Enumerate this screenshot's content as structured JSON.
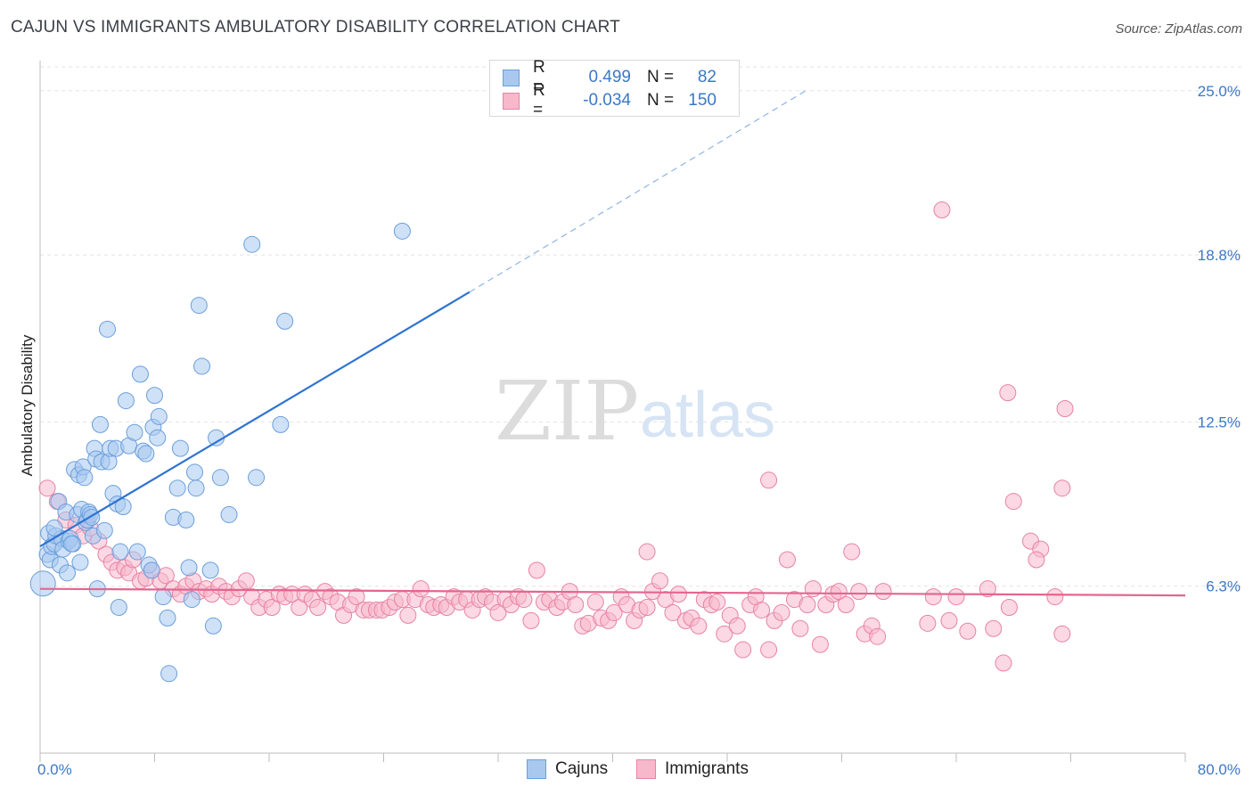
{
  "title": "CAJUN VS IMMIGRANTS AMBULATORY DISABILITY CORRELATION CHART",
  "source": "Source: ZipAtlas.com",
  "watermark": {
    "zip": "ZIP",
    "atlas": "atlas"
  },
  "legend": {
    "rows": [
      {
        "r_label": "R =",
        "r_value": "0.499",
        "n_label": "N =",
        "n_value": "82",
        "color": "#a8c8f0",
        "border": "#6a9fdc"
      },
      {
        "r_label": "R =",
        "r_value": "-0.034",
        "n_label": "N =",
        "n_value": "150",
        "color": "#f7b8cc",
        "border": "#e882a4"
      }
    ]
  },
  "bottom_legend": [
    {
      "label": "Cajuns",
      "color": "#a8c8f0",
      "border": "#6a9fdc"
    },
    {
      "label": "Immigrants",
      "color": "#f7b8cc",
      "border": "#e882a4"
    }
  ],
  "chart_data": {
    "type": "scatter",
    "title": "CAJUN VS IMMIGRANTS AMBULATORY DISABILITY CORRELATION CHART",
    "xlabel": "",
    "ylabel": "Ambulatory Disability",
    "xlim": [
      0,
      80
    ],
    "ylim": [
      0,
      25.9
    ],
    "x_tick_labels": [
      "0.0%",
      "80.0%"
    ],
    "y_ticks": [
      6.3,
      12.5,
      18.8,
      25.0
    ],
    "y_tick_labels": [
      "6.3%",
      "12.5%",
      "18.8%",
      "25.0%"
    ],
    "grid": true,
    "legend_position": "top-center",
    "series": [
      {
        "name": "Cajuns",
        "color": "#6a9fdc",
        "fill": "#a8c8f0",
        "trend": {
          "x": [
            0,
            30
          ],
          "y": [
            7.8,
            17.4
          ],
          "dashed_to": [
            53.5,
            25.0
          ]
        },
        "points": [
          [
            0.2,
            6.4
          ],
          [
            0.5,
            7.5
          ],
          [
            0.6,
            8.3
          ],
          [
            0.7,
            7.3
          ],
          [
            0.8,
            7.8
          ],
          [
            1.0,
            7.9
          ],
          [
            1.1,
            8.2
          ],
          [
            1.3,
            9.5
          ],
          [
            1.4,
            7.1
          ],
          [
            1.5,
            8.1
          ],
          [
            1.6,
            7.7
          ],
          [
            1.8,
            9.1
          ],
          [
            1.9,
            6.8
          ],
          [
            2.0,
            8.0
          ],
          [
            2.1,
            8.1
          ],
          [
            2.3,
            7.9
          ],
          [
            2.4,
            10.7
          ],
          [
            2.6,
            9.0
          ],
          [
            2.7,
            10.5
          ],
          [
            2.8,
            7.2
          ],
          [
            2.9,
            9.2
          ],
          [
            3.0,
            10.8
          ],
          [
            3.1,
            10.4
          ],
          [
            3.2,
            8.7
          ],
          [
            3.3,
            8.8
          ],
          [
            3.4,
            9.1
          ],
          [
            3.5,
            9.0
          ],
          [
            3.7,
            8.2
          ],
          [
            3.8,
            11.5
          ],
          [
            3.9,
            11.1
          ],
          [
            4.0,
            6.2
          ],
          [
            4.2,
            12.4
          ],
          [
            4.3,
            11.0
          ],
          [
            4.5,
            8.4
          ],
          [
            4.7,
            16.0
          ],
          [
            4.8,
            11.0
          ],
          [
            4.9,
            11.5
          ],
          [
            5.1,
            9.8
          ],
          [
            5.3,
            11.5
          ],
          [
            5.4,
            9.4
          ],
          [
            5.5,
            5.5
          ],
          [
            5.6,
            7.6
          ],
          [
            5.8,
            9.3
          ],
          [
            6.0,
            13.3
          ],
          [
            6.2,
            11.6
          ],
          [
            6.6,
            12.1
          ],
          [
            6.8,
            7.6
          ],
          [
            7.0,
            14.3
          ],
          [
            7.2,
            11.4
          ],
          [
            7.4,
            11.3
          ],
          [
            7.6,
            7.1
          ],
          [
            7.8,
            6.9
          ],
          [
            7.9,
            12.3
          ],
          [
            8.0,
            13.5
          ],
          [
            8.2,
            11.9
          ],
          [
            8.3,
            12.7
          ],
          [
            8.6,
            5.9
          ],
          [
            8.9,
            5.1
          ],
          [
            9.0,
            3.0
          ],
          [
            9.3,
            8.9
          ],
          [
            9.6,
            10.0
          ],
          [
            9.8,
            11.5
          ],
          [
            10.2,
            8.8
          ],
          [
            10.4,
            7.0
          ],
          [
            10.6,
            5.8
          ],
          [
            10.8,
            10.6
          ],
          [
            10.9,
            10.0
          ],
          [
            11.1,
            16.9
          ],
          [
            11.3,
            14.6
          ],
          [
            11.9,
            6.9
          ],
          [
            12.1,
            4.8
          ],
          [
            12.3,
            11.9
          ],
          [
            12.6,
            10.4
          ],
          [
            13.2,
            9.0
          ],
          [
            14.8,
            19.2
          ],
          [
            15.1,
            10.4
          ],
          [
            17.1,
            16.3
          ],
          [
            16.8,
            12.4
          ],
          [
            25.3,
            19.7
          ],
          [
            1.0,
            8.5
          ],
          [
            3.6,
            8.9
          ],
          [
            2.2,
            7.9
          ]
        ]
      },
      {
        "name": "Immigrants",
        "color": "#e882a4",
        "fill": "#f7b8cc",
        "trend": {
          "x": [
            0,
            80
          ],
          "y": [
            6.2,
            5.95
          ]
        },
        "points": [
          [
            0.5,
            10.0
          ],
          [
            1.2,
            9.5
          ],
          [
            1.8,
            8.8
          ],
          [
            2.5,
            8.6
          ],
          [
            3.0,
            8.2
          ],
          [
            3.5,
            8.5
          ],
          [
            4.1,
            8.0
          ],
          [
            4.6,
            7.5
          ],
          [
            5.0,
            7.2
          ],
          [
            5.4,
            6.9
          ],
          [
            5.9,
            7.0
          ],
          [
            6.2,
            6.8
          ],
          [
            6.5,
            7.3
          ],
          [
            7.0,
            6.5
          ],
          [
            7.4,
            6.6
          ],
          [
            7.8,
            6.9
          ],
          [
            8.4,
            6.5
          ],
          [
            8.8,
            6.7
          ],
          [
            9.3,
            6.2
          ],
          [
            9.8,
            6.0
          ],
          [
            10.2,
            6.3
          ],
          [
            10.7,
            6.5
          ],
          [
            11.1,
            6.1
          ],
          [
            11.6,
            6.2
          ],
          [
            12.0,
            6.0
          ],
          [
            12.5,
            6.3
          ],
          [
            13.0,
            6.1
          ],
          [
            13.4,
            5.9
          ],
          [
            13.9,
            6.2
          ],
          [
            14.4,
            6.5
          ],
          [
            14.8,
            5.9
          ],
          [
            15.3,
            5.5
          ],
          [
            15.8,
            5.8
          ],
          [
            16.2,
            5.5
          ],
          [
            16.7,
            6.0
          ],
          [
            17.1,
            5.9
          ],
          [
            17.6,
            6.0
          ],
          [
            18.1,
            5.5
          ],
          [
            18.5,
            6.0
          ],
          [
            19.0,
            5.8
          ],
          [
            19.4,
            5.5
          ],
          [
            19.9,
            6.1
          ],
          [
            20.3,
            5.9
          ],
          [
            20.8,
            5.7
          ],
          [
            21.2,
            5.2
          ],
          [
            21.7,
            5.6
          ],
          [
            22.1,
            5.9
          ],
          [
            22.6,
            5.4
          ],
          [
            23.0,
            5.4
          ],
          [
            23.5,
            5.4
          ],
          [
            23.9,
            5.4
          ],
          [
            24.4,
            5.5
          ],
          [
            24.8,
            5.7
          ],
          [
            25.3,
            5.8
          ],
          [
            25.7,
            5.2
          ],
          [
            26.2,
            5.8
          ],
          [
            26.6,
            6.2
          ],
          [
            27.1,
            5.6
          ],
          [
            27.5,
            5.5
          ],
          [
            28.0,
            5.6
          ],
          [
            28.4,
            5.5
          ],
          [
            28.9,
            5.9
          ],
          [
            29.3,
            5.7
          ],
          [
            29.8,
            5.8
          ],
          [
            30.2,
            5.4
          ],
          [
            30.7,
            5.8
          ],
          [
            31.1,
            5.9
          ],
          [
            31.6,
            5.7
          ],
          [
            32.0,
            5.3
          ],
          [
            32.5,
            5.8
          ],
          [
            32.9,
            5.6
          ],
          [
            33.4,
            5.9
          ],
          [
            33.8,
            5.8
          ],
          [
            34.3,
            5.0
          ],
          [
            34.7,
            6.9
          ],
          [
            35.2,
            5.7
          ],
          [
            35.6,
            5.8
          ],
          [
            36.1,
            5.5
          ],
          [
            36.5,
            5.7
          ],
          [
            37.0,
            6.1
          ],
          [
            37.4,
            5.6
          ],
          [
            37.9,
            4.8
          ],
          [
            38.3,
            4.9
          ],
          [
            38.8,
            5.7
          ],
          [
            39.2,
            5.1
          ],
          [
            39.7,
            5.0
          ],
          [
            40.1,
            5.3
          ],
          [
            40.6,
            5.9
          ],
          [
            41.0,
            5.6
          ],
          [
            41.5,
            5.0
          ],
          [
            41.9,
            5.4
          ],
          [
            42.4,
            5.5
          ],
          [
            42.8,
            6.1
          ],
          [
            43.3,
            6.5
          ],
          [
            43.7,
            5.8
          ],
          [
            44.2,
            5.3
          ],
          [
            44.6,
            6.0
          ],
          [
            45.1,
            5.0
          ],
          [
            45.5,
            5.1
          ],
          [
            46.0,
            4.8
          ],
          [
            46.4,
            5.8
          ],
          [
            46.9,
            5.6
          ],
          [
            47.3,
            5.7
          ],
          [
            47.8,
            4.5
          ],
          [
            48.2,
            5.2
          ],
          [
            48.7,
            4.8
          ],
          [
            49.1,
            3.9
          ],
          [
            49.6,
            5.6
          ],
          [
            50.0,
            5.9
          ],
          [
            50.4,
            5.4
          ],
          [
            50.9,
            3.9
          ],
          [
            51.3,
            5.0
          ],
          [
            51.8,
            5.3
          ],
          [
            52.2,
            7.3
          ],
          [
            52.7,
            5.8
          ],
          [
            53.1,
            4.7
          ],
          [
            53.6,
            5.6
          ],
          [
            54.0,
            6.2
          ],
          [
            54.5,
            4.1
          ],
          [
            54.9,
            5.6
          ],
          [
            55.4,
            6.0
          ],
          [
            55.8,
            6.1
          ],
          [
            56.3,
            5.6
          ],
          [
            56.7,
            7.6
          ],
          [
            57.2,
            6.1
          ],
          [
            57.6,
            4.5
          ],
          [
            58.1,
            4.8
          ],
          [
            58.5,
            4.4
          ],
          [
            58.9,
            6.1
          ],
          [
            63.0,
            20.5
          ],
          [
            63.5,
            5.0
          ],
          [
            64.0,
            5.9
          ],
          [
            67.6,
            13.6
          ],
          [
            71.6,
            13.0
          ],
          [
            71.4,
            10.0
          ],
          [
            62.4,
            5.9
          ],
          [
            66.6,
            4.7
          ],
          [
            66.2,
            6.2
          ],
          [
            64.8,
            4.6
          ],
          [
            68.0,
            9.5
          ],
          [
            69.2,
            8.0
          ],
          [
            69.9,
            7.7
          ],
          [
            69.6,
            7.3
          ],
          [
            70.9,
            5.9
          ],
          [
            71.4,
            4.5
          ],
          [
            67.7,
            5.5
          ],
          [
            67.3,
            3.4
          ],
          [
            62.0,
            4.9
          ],
          [
            50.9,
            10.3
          ],
          [
            42.4,
            7.6
          ]
        ]
      }
    ]
  }
}
